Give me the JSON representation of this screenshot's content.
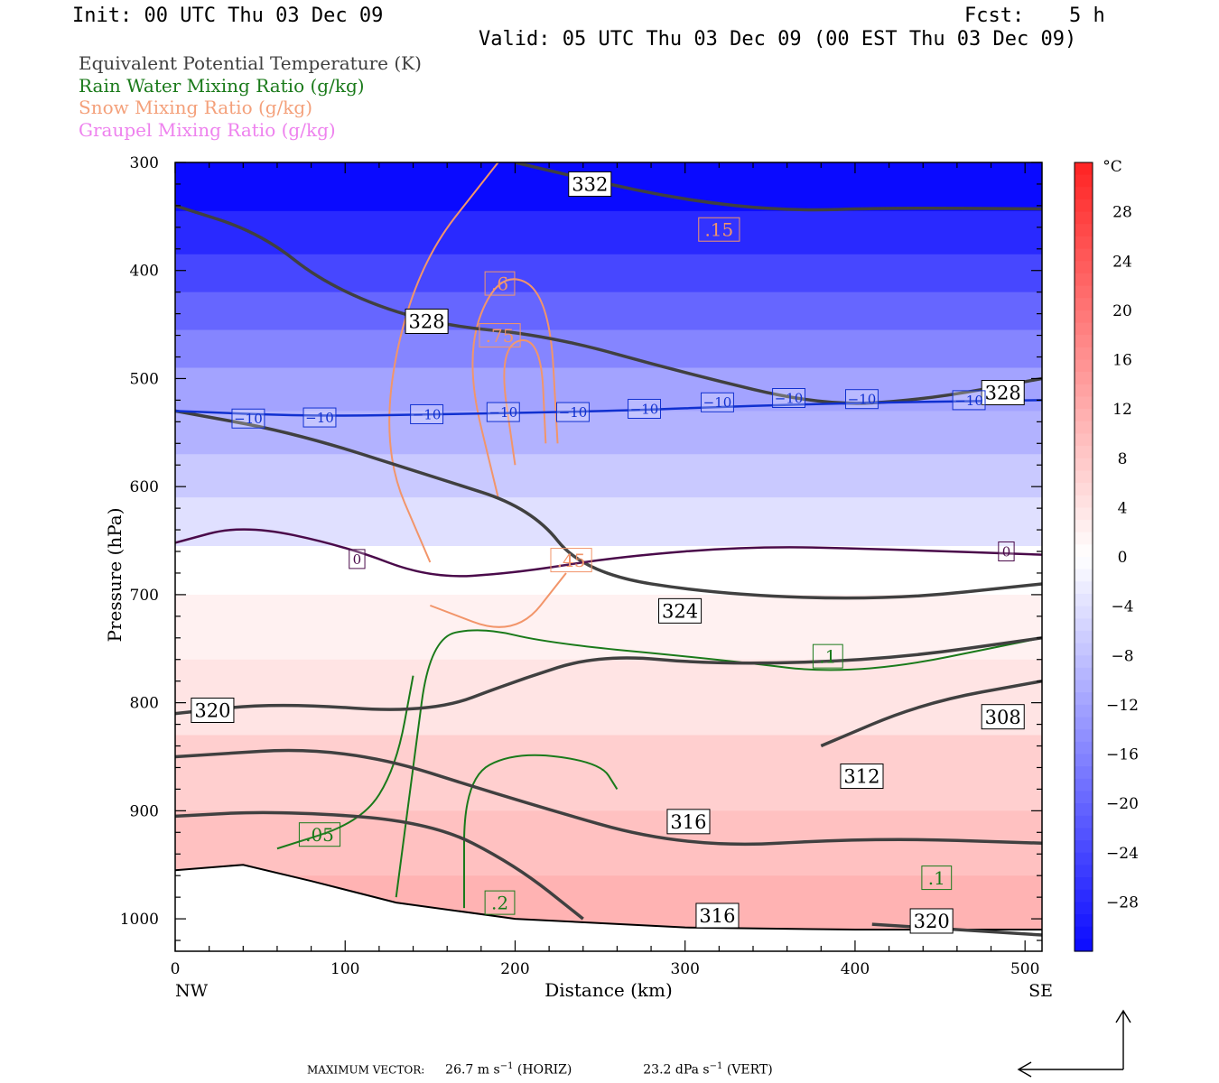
{
  "header": {
    "init": "Init: 00 UTC Thu 03 Dec 09",
    "fcst_label": "Fcst:",
    "fcst_value": "5 h",
    "valid": "Valid: 05 UTC Thu 03 Dec 09 (00 EST Thu 03 Dec 09)"
  },
  "legend": [
    {
      "label": "Equivalent Potential Temperature (K)",
      "color": "#404040"
    },
    {
      "label": "Rain Water Mixing Ratio (g/kg)",
      "color": "#1a7a1a"
    },
    {
      "label": "Snow Mixing Ratio (g/kg)",
      "color": "#f4a07a"
    },
    {
      "label": "Graupel Mixing Ratio (g/kg)",
      "color": "#ee82ee"
    }
  ],
  "colors": {
    "theta_e": "#404040",
    "rain": "#1a7a1a",
    "snow": "#f2956a",
    "isotherm_neg10": "#1030d0",
    "isotherm_0": "#4a0a4a",
    "ground": "#000000"
  },
  "chart_data": {
    "type": "heatmap",
    "title": "",
    "xlabel": "Distance (km)",
    "ylabel": "Pressure (hPa)",
    "xlim": [
      0,
      510
    ],
    "ylim": [
      1030,
      300
    ],
    "y_scale": "linear, inverted",
    "x_ticks": [
      0,
      100,
      200,
      300,
      400,
      500
    ],
    "x_tick_labels": [
      "0",
      "100",
      "200",
      "300",
      "400",
      "500"
    ],
    "y_ticks": [
      300,
      400,
      500,
      600,
      700,
      800,
      900,
      1000
    ],
    "y_tick_labels": [
      "300",
      "400",
      "500",
      "600",
      "700",
      "800",
      "900",
      "1000"
    ],
    "x_end_labels": {
      "left": "NW",
      "right": "SE"
    },
    "colorbar": {
      "unit": "°C",
      "tick_values": [
        28,
        24,
        20,
        16,
        12,
        8,
        4,
        0,
        -4,
        -8,
        -12,
        -16,
        -20,
        -24,
        -28
      ],
      "tick_labels": [
        "28",
        "24",
        "20",
        "16",
        "12",
        "8",
        "4",
        "0",
        "−4",
        "−8",
        "−12",
        "−16",
        "−20",
        "−24",
        "−28"
      ],
      "range": [
        -32,
        32
      ]
    },
    "temperature_bands": [
      {
        "p": 300,
        "t": -32
      },
      {
        "p": 345,
        "t": -28
      },
      {
        "p": 385,
        "t": -24
      },
      {
        "p": 420,
        "t": -20
      },
      {
        "p": 455,
        "t": -16
      },
      {
        "p": 490,
        "t": -12
      },
      {
        "p": 530,
        "t": -10
      },
      {
        "p": 570,
        "t": -7
      },
      {
        "p": 610,
        "t": -4
      },
      {
        "p": 655,
        "t": 0
      },
      {
        "p": 700,
        "t": 2
      },
      {
        "p": 760,
        "t": 4
      },
      {
        "p": 830,
        "t": 7
      },
      {
        "p": 900,
        "t": 9
      },
      {
        "p": 960,
        "t": 11
      },
      {
        "p": 1010,
        "t": 13
      }
    ],
    "ground_surface": [
      [
        0,
        955
      ],
      [
        40,
        950
      ],
      [
        80,
        965
      ],
      [
        130,
        985
      ],
      [
        200,
        1000
      ],
      [
        300,
        1008
      ],
      [
        400,
        1010
      ],
      [
        510,
        1010
      ]
    ],
    "isotherms": [
      {
        "value": -10,
        "label": "−10",
        "points": [
          [
            0,
            530
          ],
          [
            80,
            535
          ],
          [
            160,
            533
          ],
          [
            260,
            530
          ],
          [
            340,
            525
          ],
          [
            420,
            522
          ],
          [
            510,
            520
          ]
        ],
        "label_at": [
          [
            43,
            537
          ],
          [
            85,
            536
          ],
          [
            148,
            533
          ],
          [
            193,
            531
          ],
          [
            234,
            531
          ],
          [
            276,
            528
          ],
          [
            319,
            522
          ],
          [
            361,
            518
          ],
          [
            404,
            519
          ],
          [
            467,
            520
          ]
        ]
      },
      {
        "value": 0,
        "label": "0",
        "points": [
          [
            0,
            652
          ],
          [
            40,
            635
          ],
          [
            100,
            655
          ],
          [
            150,
            685
          ],
          [
            200,
            680
          ],
          [
            260,
            665
          ],
          [
            340,
            655
          ],
          [
            420,
            658
          ],
          [
            510,
            663
          ]
        ],
        "label_at": [
          [
            107,
            667
          ],
          [
            489,
            660
          ]
        ]
      }
    ],
    "theta_e_contours": [
      {
        "value": 332,
        "label": "332",
        "points": [
          [
            200,
            300
          ],
          [
            240,
            315
          ],
          [
            300,
            335
          ],
          [
            360,
            345
          ],
          [
            420,
            342
          ],
          [
            510,
            343
          ]
        ],
        "label_at": [
          [
            244,
            320
          ]
        ]
      },
      {
        "value": 328,
        "label": "328",
        "points": [
          [
            0,
            340
          ],
          [
            50,
            365
          ],
          [
            90,
            415
          ],
          [
            150,
            450
          ],
          [
            220,
            460
          ],
          [
            300,
            495
          ],
          [
            380,
            525
          ],
          [
            440,
            520
          ],
          [
            510,
            500
          ]
        ],
        "label_at": [
          [
            148,
            447
          ],
          [
            487,
            513
          ]
        ]
      },
      {
        "value": 324,
        "label": "324",
        "points": [
          [
            0,
            530
          ],
          [
            70,
            550
          ],
          [
            150,
            590
          ],
          [
            210,
            620
          ],
          [
            240,
            680
          ],
          [
            320,
            700
          ],
          [
            420,
            705
          ],
          [
            510,
            690
          ]
        ],
        "label_at": [
          [
            297,
            715
          ]
        ]
      },
      {
        "value": 320,
        "label": "320",
        "points": [
          [
            0,
            810
          ],
          [
            60,
            800
          ],
          [
            150,
            810
          ],
          [
            200,
            780
          ],
          [
            250,
            755
          ],
          [
            320,
            765
          ],
          [
            420,
            760
          ],
          [
            510,
            740
          ]
        ],
        "label_at": [
          [
            22,
            807
          ]
        ]
      },
      {
        "value": 316,
        "label": "316",
        "points": [
          [
            0,
            850
          ],
          [
            100,
            840
          ],
          [
            200,
            890
          ],
          [
            300,
            935
          ],
          [
            410,
            925
          ],
          [
            510,
            930
          ]
        ],
        "label_at": [
          [
            302,
            910
          ],
          [
            319,
            997
          ]
        ]
      },
      {
        "value": 312,
        "label": "312",
        "points": [
          [
            240,
            1000
          ],
          [
            200,
            950
          ],
          [
            150,
            910
          ],
          [
            60,
            900
          ],
          [
            0,
            905
          ]
        ],
        "label_at": [
          [
            404,
            868
          ]
        ]
      },
      {
        "value": 308,
        "label": "308",
        "points": [
          [
            380,
            840
          ],
          [
            440,
            800
          ],
          [
            510,
            780
          ]
        ],
        "label_at": [
          [
            487,
            813
          ]
        ]
      },
      {
        "value": 320,
        "label": "320",
        "points": [
          [
            410,
            1005
          ],
          [
            460,
            1010
          ],
          [
            510,
            1015
          ]
        ],
        "label_at": [
          [
            445,
            1002
          ]
        ]
      }
    ],
    "rain_contours": [
      {
        "value": 0.1,
        "label": ".1",
        "points": [
          [
            130,
            980
          ],
          [
            140,
            860
          ],
          [
            150,
            740
          ],
          [
            180,
            730
          ],
          [
            220,
            745
          ],
          [
            320,
            760
          ],
          [
            400,
            775
          ],
          [
            510,
            740
          ]
        ],
        "label_at": [
          [
            384,
            757
          ],
          [
            448,
            962
          ]
        ]
      },
      {
        "value": 0.05,
        "label": ".05",
        "points": [
          [
            60,
            935
          ],
          [
            110,
            910
          ],
          [
            130,
            860
          ],
          [
            140,
            775
          ]
        ],
        "label_at": [
          [
            85,
            922
          ]
        ]
      },
      {
        "value": 0.2,
        "label": ".2",
        "points": [
          [
            170,
            990
          ],
          [
            170,
            870
          ],
          [
            200,
            845
          ],
          [
            250,
            855
          ],
          [
            260,
            880
          ]
        ],
        "label_at": [
          [
            191,
            985
          ]
        ]
      }
    ],
    "snow_contours": [
      {
        "value": 0.15,
        "label": ".15",
        "points": [
          [
            150,
            670
          ],
          [
            120,
            560
          ],
          [
            140,
            400
          ],
          [
            190,
            300
          ]
        ],
        "label_at": [
          [
            320,
            362
          ]
        ]
      },
      {
        "value": 0.6,
        "label": ".6",
        "points": [
          [
            190,
            610
          ],
          [
            170,
            480
          ],
          [
            190,
            400
          ],
          [
            220,
            420
          ],
          [
            225,
            560
          ]
        ],
        "label_at": [
          [
            191,
            412
          ]
        ]
      },
      {
        "value": 0.75,
        "label": ".75",
        "points": [
          [
            200,
            580
          ],
          [
            190,
            470
          ],
          [
            215,
            460
          ],
          [
            218,
            560
          ]
        ],
        "label_at": [
          [
            191,
            460
          ]
        ]
      },
      {
        "value": 0.45,
        "label": ".45",
        "points": [
          [
            230,
            680
          ],
          [
            200,
            740
          ],
          [
            150,
            710
          ]
        ],
        "label_at": [
          [
            233,
            668
          ]
        ]
      }
    ],
    "wind_vector_note": "MAXIMUM VECTOR: 26.7 m s-1 (HORIZ) 23.2 dPa s-1 (VERT)"
  },
  "footer": {
    "max_vector_label": "MAXIMUM VECTOR:",
    "horiz_value": "26.7 m s",
    "horiz_sup": "−1",
    "horiz_unit": "(HORIZ)",
    "vert_value": "23.2 dPa s",
    "vert_sup": "−1",
    "vert_unit": "(VERT)"
  }
}
